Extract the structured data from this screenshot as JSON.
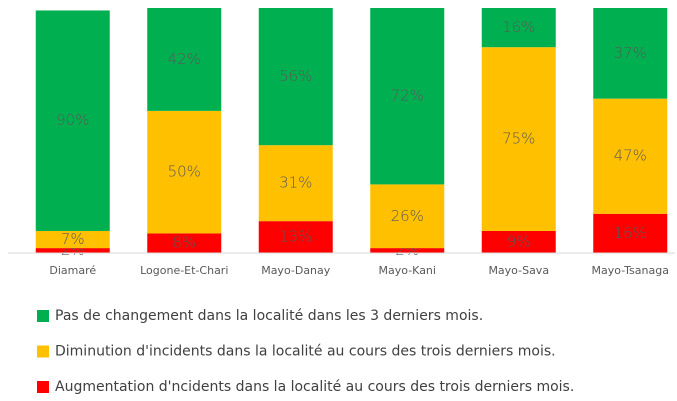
{
  "chart_data": {
    "type": "stacked_bar",
    "categories": [
      "Diamaré",
      "Logone-Et-Chari",
      "Mayo-Danay",
      "Mayo-Kani",
      "Mayo-Sava",
      "Mayo-Tsanaga"
    ],
    "series": [
      {
        "name": "Pas de changement dans la localité dans les 3 derniers mois.",
        "color": "#00b050",
        "values": [
          90,
          42,
          56,
          72,
          16,
          37
        ],
        "value_labels": [
          "90%",
          "42%",
          "56%",
          "72%",
          "16%",
          "37%"
        ]
      },
      {
        "name": "Diminution d'incidents dans la localité au cours des trois derniers mois.",
        "color": "#ffc000",
        "values": [
          7,
          50,
          31,
          26,
          75,
          47
        ],
        "value_labels": [
          "7%",
          "50%",
          "31%",
          "26%",
          "75%",
          "47%"
        ]
      },
      {
        "name": "Augmentation d'ncidents dans la localité au cours des trois derniers mois.",
        "color": "#ff0000",
        "values": [
          2,
          8,
          13,
          2,
          9,
          16
        ],
        "value_labels": [
          "2%",
          "8%",
          "13%",
          "2%",
          "9%",
          "16%"
        ]
      }
    ],
    "legend": "bottom"
  }
}
